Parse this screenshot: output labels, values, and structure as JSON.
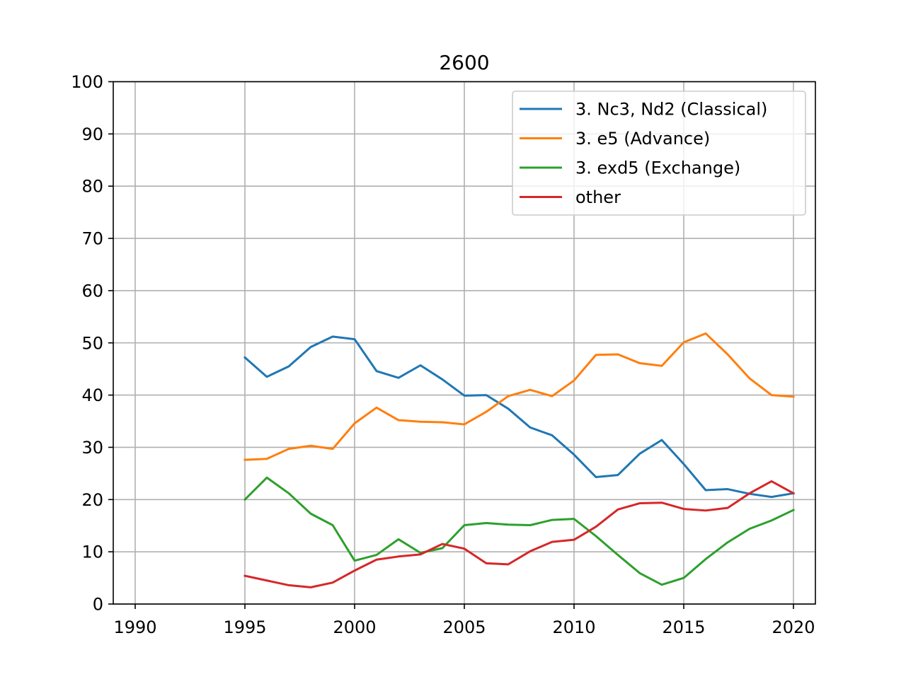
{
  "chart_data": {
    "type": "line",
    "title": "2600",
    "xlabel": "",
    "ylabel": "",
    "xlim": [
      1989,
      2021
    ],
    "ylim": [
      0,
      100
    ],
    "xticks": [
      "1990",
      "1995",
      "2000",
      "2005",
      "2010",
      "2015",
      "2020"
    ],
    "yticks": [
      "0",
      "10",
      "20",
      "30",
      "40",
      "50",
      "60",
      "70",
      "80",
      "90",
      "100"
    ],
    "grid": true,
    "legend_position": "top-right",
    "x": [
      1995,
      1996,
      1997,
      1998,
      1999,
      2000,
      2001,
      2002,
      2003,
      2004,
      2005,
      2006,
      2007,
      2008,
      2009,
      2010,
      2011,
      2012,
      2013,
      2014,
      2015,
      2016,
      2017,
      2018,
      2019,
      2020
    ],
    "series": [
      {
        "name": "3. Nc3, Nd2 (Classical)",
        "color": "#1f77b4",
        "values": [
          47.2,
          43.5,
          45.5,
          49.2,
          51.2,
          50.7,
          44.6,
          43.3,
          45.7,
          43.0,
          39.9,
          40.0,
          37.4,
          33.8,
          32.3,
          28.6,
          24.3,
          24.7,
          28.8,
          31.4,
          26.8,
          21.8,
          22.0,
          21.1,
          20.5,
          21.2
        ]
      },
      {
        "name": "3. e5 (Advance)",
        "color": "#ff7f0e",
        "values": [
          27.6,
          27.8,
          29.7,
          30.3,
          29.7,
          34.6,
          37.6,
          35.2,
          34.9,
          34.8,
          34.4,
          36.8,
          39.8,
          41.0,
          39.8,
          42.8,
          47.7,
          47.8,
          46.1,
          45.6,
          50.1,
          51.8,
          47.8,
          43.2,
          40.0,
          39.7
        ]
      },
      {
        "name": "3. exd5 (Exchange)",
        "color": "#2ca02c",
        "values": [
          20.0,
          24.2,
          21.2,
          17.3,
          15.1,
          8.3,
          9.4,
          12.4,
          9.8,
          10.7,
          15.1,
          15.5,
          15.2,
          15.1,
          16.1,
          16.3,
          13.0,
          9.4,
          5.9,
          3.7,
          5.0,
          8.6,
          11.8,
          14.4,
          16.0,
          18.0
        ]
      },
      {
        "name": "other",
        "color": "#d62728",
        "values": [
          5.4,
          4.5,
          3.6,
          3.2,
          4.1,
          6.4,
          8.5,
          9.1,
          9.5,
          11.5,
          10.6,
          7.8,
          7.6,
          10.1,
          11.9,
          12.3,
          14.8,
          18.1,
          19.3,
          19.4,
          18.2,
          17.9,
          18.4,
          21.2,
          23.5,
          21.2
        ]
      }
    ]
  }
}
